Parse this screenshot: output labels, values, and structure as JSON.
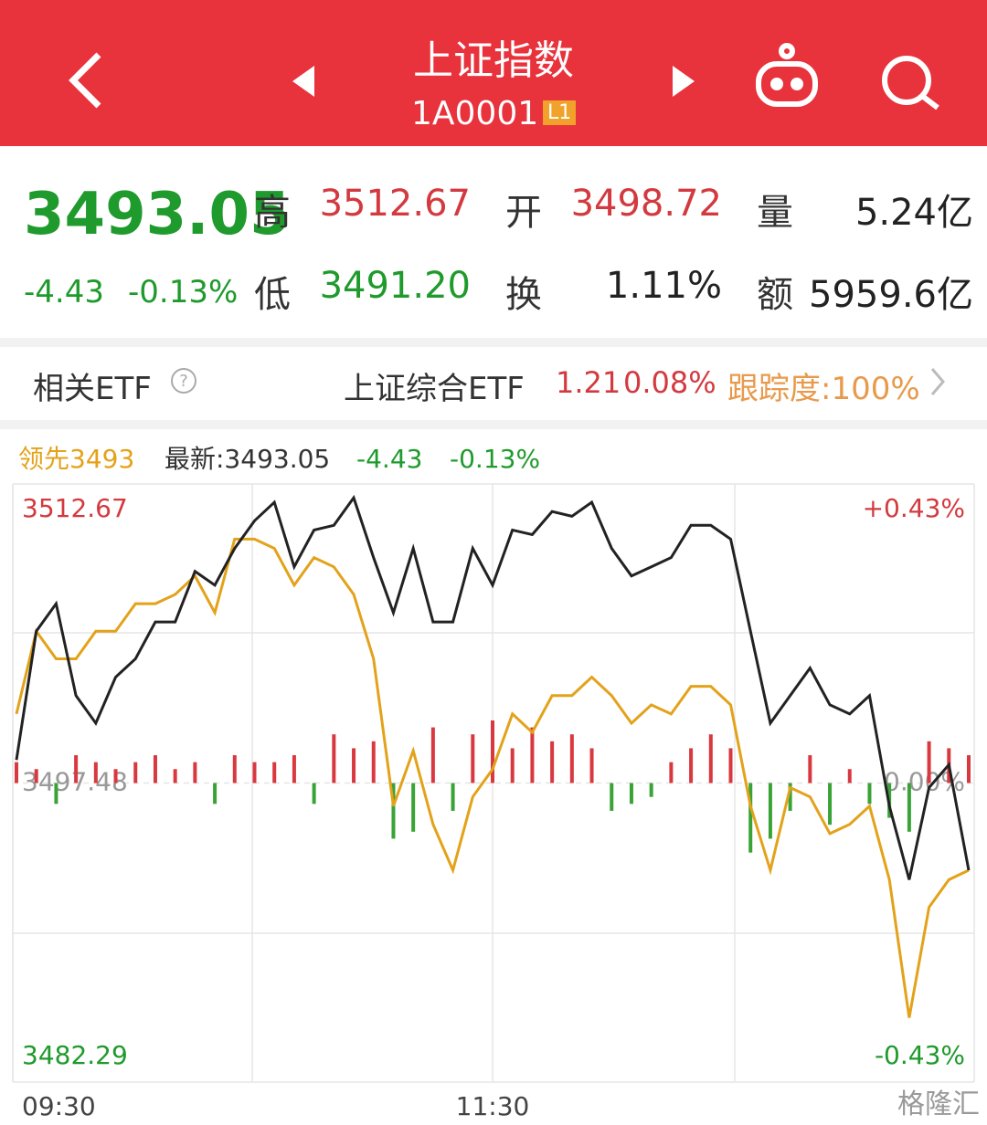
{
  "header": {
    "title": "上证指数",
    "code": "1A0001",
    "level": "L1"
  },
  "quote": {
    "price": "3493.05",
    "change": "-4.43",
    "change_pct": "-0.13%",
    "fields": [
      {
        "label": "高",
        "value": "3512.67"
      },
      {
        "label": "开",
        "value": "3498.72"
      },
      {
        "label": "量",
        "value": "5.24亿"
      },
      {
        "label": "低",
        "value": "3491.20"
      },
      {
        "label": "换",
        "value": "1.11%"
      },
      {
        "label": "额",
        "value": "5959.6亿"
      }
    ]
  },
  "etf": {
    "label": "相关ETF",
    "name": "上证综合ETF",
    "price": "1.21",
    "change_pct": "0.08%",
    "tracking": "跟踪度:100%"
  },
  "chart_data": {
    "type": "line",
    "legend": {
      "lead": "领先3493",
      "latest": "最新:3493.05",
      "change": "-4.43",
      "change_pct": "-0.13%"
    },
    "categories": [
      "09:30",
      null,
      null,
      null,
      null,
      null,
      null,
      null,
      null,
      null,
      null,
      null,
      null,
      null,
      null,
      null,
      null,
      null,
      null,
      null,
      null,
      null,
      null,
      null,
      "11:30",
      null,
      null,
      null,
      null,
      null,
      null,
      null,
      null,
      null,
      null,
      null,
      null,
      null,
      null,
      null,
      null,
      null,
      null,
      null,
      null,
      null,
      null,
      null,
      null
    ],
    "series": [
      {
        "color": "#e3a21a",
        "values": [
          3500.99,
          3505.19,
          3503.79,
          3503.79,
          3505.19,
          3505.19,
          3506.59,
          3506.59,
          3507.06,
          3508.0,
          3506.13,
          3509.87,
          3509.87,
          3509.4,
          3507.53,
          3508.93,
          3508.46,
          3507.06,
          3503.79,
          3496.31,
          3499.12,
          3495.38,
          3493.05,
          3496.78,
          3498.18,
          3500.99,
          3500.05,
          3501.92,
          3501.92,
          3502.86,
          3501.92,
          3500.52,
          3501.45,
          3500.99,
          3502.39,
          3502.39,
          3501.45,
          3496.31,
          3493.05,
          3497.25,
          3496.78,
          3494.91,
          3495.38,
          3496.31,
          3492.57,
          3485.56,
          3491.17,
          3492.57,
          3493.05
        ]
      },
      {
        "color": "#222222",
        "values": [
          3498.65,
          3505.19,
          3506.59,
          3501.92,
          3500.52,
          3502.86,
          3503.79,
          3505.66,
          3505.66,
          3508.23,
          3507.53,
          3509.4,
          3510.8,
          3511.74,
          3508.46,
          3510.33,
          3510.57,
          3511.97,
          3508.93,
          3506.13,
          3509.4,
          3505.66,
          3505.66,
          3509.4,
          3507.53,
          3510.33,
          3510.1,
          3511.27,
          3511.03,
          3511.74,
          3509.4,
          3508.0,
          3508.46,
          3508.93,
          3510.57,
          3510.57,
          3509.87,
          3505.19,
          3500.52,
          3501.92,
          3503.32,
          3501.45,
          3500.99,
          3501.92,
          3496.31,
          3492.57,
          3497.25,
          3498.41,
          3493.05
        ]
      },
      {
        "type": "bar",
        "axis": "y2",
        "up_color": "#d9383f",
        "down_color": "#3aa336",
        "values": [
          0.03,
          0.02,
          -0.03,
          0.04,
          0.03,
          0.02,
          0.03,
          0.04,
          0.02,
          0.03,
          -0.03,
          0.04,
          0.03,
          0.03,
          0.04,
          -0.03,
          0.07,
          0.05,
          0.06,
          -0.08,
          -0.07,
          0.08,
          -0.04,
          0.07,
          0.09,
          0.05,
          0.08,
          0.06,
          0.07,
          0.05,
          -0.04,
          -0.03,
          -0.02,
          0.03,
          0.05,
          0.07,
          0.05,
          -0.1,
          -0.08,
          -0.04,
          0.04,
          -0.06,
          0.02,
          -0.03,
          -0.05,
          -0.07,
          0.06,
          0.05,
          0.04
        ]
      }
    ],
    "ylim": [
      3482.29,
      3512.67
    ],
    "yticks": [
      3512.67,
      3497.48,
      3482.29
    ],
    "y2lim": [
      -0.43,
      0.43
    ],
    "y2ticks": [
      {
        "value": 0.43,
        "label": "+0.43%"
      },
      {
        "value": 0,
        "label": "0.00%"
      },
      {
        "value": -0.43,
        "label": "-0.43%"
      }
    ],
    "grid": true
  },
  "watermark": "格隆汇"
}
